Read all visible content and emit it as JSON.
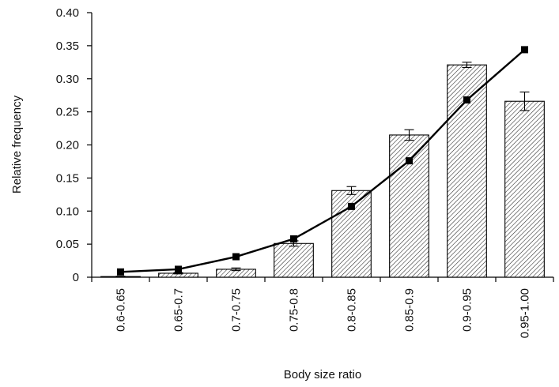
{
  "chart_data": {
    "type": "bar",
    "xlabel": "Body size ratio",
    "ylabel": "Relative frequency",
    "ylim": [
      0,
      0.4
    ],
    "yticks": [
      "0",
      "0.05",
      "0.10",
      "0.15",
      "0.20",
      "0.25",
      "0.30",
      "0.35",
      "0.40"
    ],
    "categories": [
      "0.6-0.65",
      "0.65-0.7",
      "0.7-0.75",
      "0.75-0.8",
      "0.8-0.85",
      "0.85-0.9",
      "0.9-0.95",
      "0.95-1.00"
    ],
    "series": [
      {
        "kind": "bar",
        "pattern": "diagonal-hatch",
        "values": [
          0.001,
          0.006,
          0.012,
          0.051,
          0.131,
          0.215,
          0.321,
          0.266
        ],
        "error": [
          0.0005,
          0.001,
          0.002,
          0.004,
          0.006,
          0.008,
          0.004,
          0.014
        ]
      },
      {
        "kind": "line",
        "marker": "square",
        "values": [
          0.008,
          0.012,
          0.031,
          0.058,
          0.107,
          0.176,
          0.268,
          0.344
        ]
      }
    ],
    "grid": false,
    "legend": "none"
  }
}
